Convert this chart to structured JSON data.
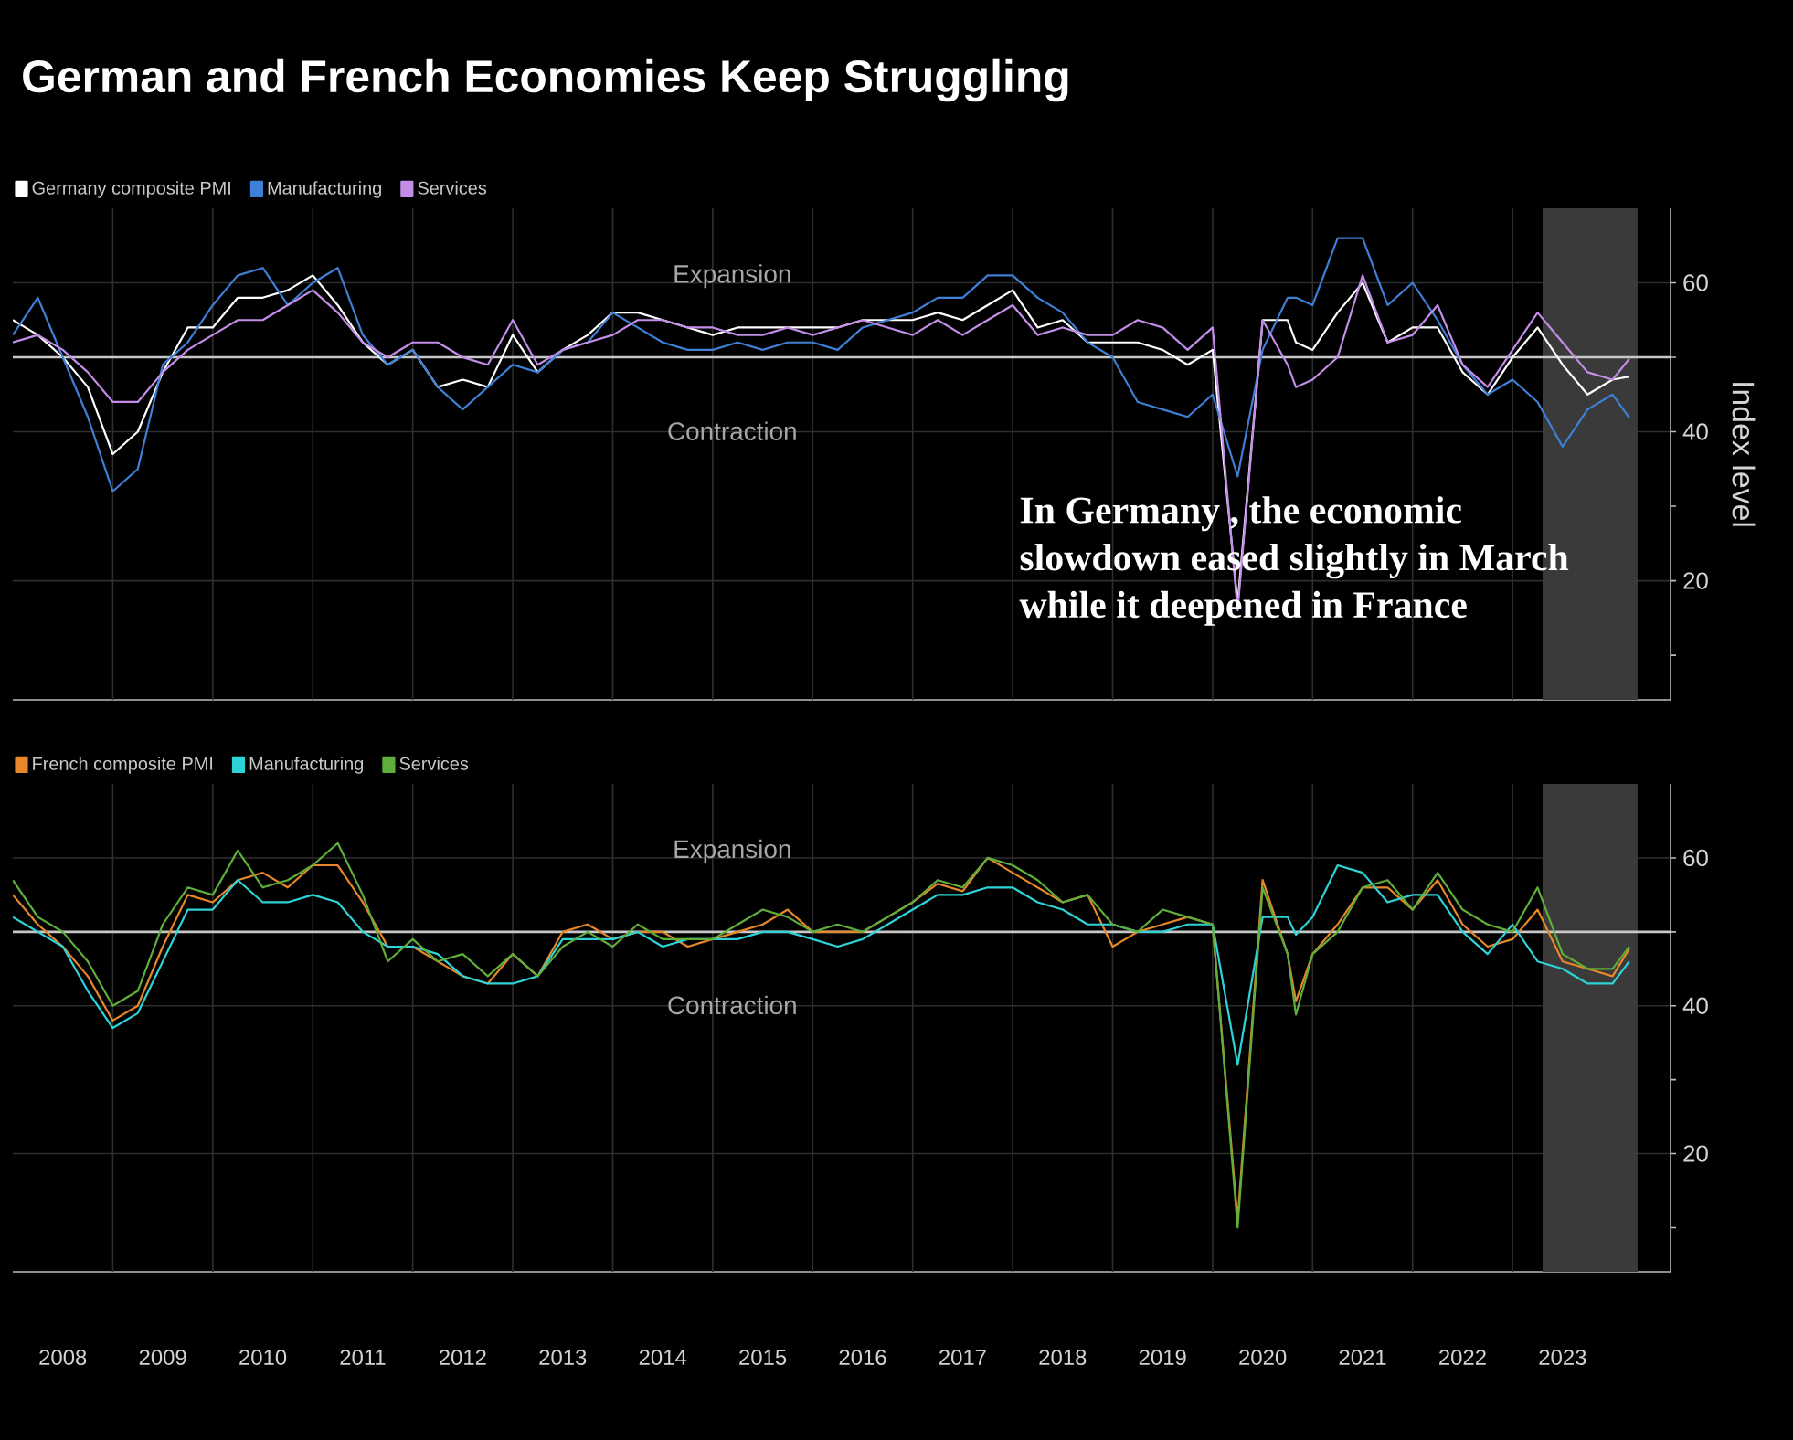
{
  "chart_data": [
    {
      "type": "line",
      "title": "German and French Economies Keep Struggling",
      "ylabel": "Index level",
      "legend": "top left",
      "tick_labels": "y",
      "grid": true,
      "x": [
        2008.0,
        2008.25,
        2008.5,
        2008.75,
        2009.0,
        2009.25,
        2009.5,
        2009.75,
        2010.0,
        2010.25,
        2010.5,
        2010.75,
        2011.0,
        2011.25,
        2011.5,
        2011.75,
        2012.0,
        2012.25,
        2012.5,
        2012.75,
        2013.0,
        2013.25,
        2013.5,
        2013.75,
        2014.0,
        2014.25,
        2014.5,
        2014.75,
        2015.0,
        2015.25,
        2015.5,
        2015.75,
        2016.0,
        2016.25,
        2016.5,
        2016.75,
        2017.0,
        2017.25,
        2017.5,
        2017.75,
        2018.0,
        2018.25,
        2018.5,
        2018.75,
        2019.0,
        2019.25,
        2019.5,
        2019.75,
        2020.0,
        2020.25,
        2020.5,
        2020.75,
        2020.833,
        2021.0,
        2021.25,
        2021.5,
        2021.75,
        2022.0,
        2022.25,
        2022.5,
        2022.75,
        2023.0,
        2023.25,
        2023.5,
        2023.75,
        2024.0,
        2024.167
      ],
      "xlim": [
        2008,
        2024.58
      ],
      "ylim": [
        4,
        70
      ],
      "xticks": [
        {
          "value": 2009,
          "label": null
        },
        {
          "value": 2010,
          "label": null
        },
        {
          "value": 2011,
          "label": null
        },
        {
          "value": 2012,
          "label": null
        },
        {
          "value": 2013,
          "label": null
        },
        {
          "value": 2014,
          "label": null
        },
        {
          "value": 2015,
          "label": null
        },
        {
          "value": 2016,
          "label": null
        },
        {
          "value": 2017,
          "label": null
        },
        {
          "value": 2018,
          "label": null
        },
        {
          "value": 2019,
          "label": null
        },
        {
          "value": 2020,
          "label": null
        },
        {
          "value": 2021,
          "label": null
        },
        {
          "value": 2022,
          "label": null
        },
        {
          "value": 2023,
          "label": null
        },
        {
          "value": 2024,
          "label": null
        }
      ],
      "yticks": [
        20,
        40,
        60,
        {
          "value": 10,
          "label": null
        },
        {
          "value": 30,
          "label": null
        },
        {
          "value": 50,
          "label": null
        }
      ],
      "ref_lines": [
        {
          "axis": "y",
          "value": 50,
          "color": "#c8c8c8"
        }
      ],
      "bands": [
        {
          "axis": "x",
          "from": 2023.3,
          "to": 2024.25,
          "color": "#3a3a3a"
        }
      ],
      "annotations": [
        "Expansion",
        "Contraction",
        "In Germany , the economic slowdown eased slightly in March while it deepened in France"
      ],
      "series": [
        {
          "name": "Germany composite PMI",
          "color": "#ffffff",
          "values": [
            55,
            53,
            50,
            46,
            37,
            40,
            48,
            54,
            54,
            58,
            58,
            59,
            61,
            57,
            52,
            49,
            51,
            46,
            47,
            46,
            53,
            48,
            51,
            53,
            56,
            56,
            55,
            54,
            53,
            54,
            54,
            54,
            54,
            54,
            55,
            55,
            55,
            56,
            55,
            57,
            59,
            54,
            55,
            52,
            52,
            52,
            51,
            49,
            51,
            17,
            55,
            55,
            52,
            51,
            56,
            60,
            52,
            54,
            54,
            48,
            45,
            50,
            54,
            49,
            45,
            47,
            47.4
          ]
        },
        {
          "name": "Manufacturing",
          "color": "#3f7fd6",
          "values": [
            53,
            58,
            50,
            42,
            32,
            35,
            49,
            52,
            57,
            61,
            62,
            57,
            60,
            62,
            53,
            49,
            51,
            46,
            43,
            46,
            49,
            48,
            51,
            52,
            56,
            54,
            52,
            51,
            51,
            52,
            51,
            52,
            52,
            51,
            54,
            55,
            56,
            58,
            58,
            61,
            61,
            58,
            56,
            52,
            50,
            44,
            43,
            42,
            45,
            34,
            51,
            58,
            58,
            57,
            66,
            66,
            57,
            60,
            55,
            49,
            45,
            47,
            44,
            38,
            43,
            45,
            41.9
          ]
        },
        {
          "name": "Services",
          "color": "#c38de8",
          "values": [
            52,
            53,
            51,
            48,
            44,
            44,
            48,
            51,
            53,
            55,
            55,
            57,
            59,
            56,
            52,
            50,
            52,
            52,
            50,
            49,
            55,
            49,
            51,
            52,
            53,
            55,
            55,
            54,
            54,
            53,
            53,
            54,
            53,
            54,
            55,
            54,
            53,
            55,
            53,
            55,
            57,
            53,
            54,
            53,
            53,
            55,
            54,
            51,
            54,
            16,
            55,
            49,
            46,
            47,
            50,
            61,
            52,
            53,
            57,
            49,
            46,
            51,
            56,
            52,
            48,
            47,
            49.8
          ]
        }
      ]
    },
    {
      "type": "line",
      "legend": "top left",
      "grid": true,
      "x": [
        2008.0,
        2008.25,
        2008.5,
        2008.75,
        2009.0,
        2009.25,
        2009.5,
        2009.75,
        2010.0,
        2010.25,
        2010.5,
        2010.75,
        2011.0,
        2011.25,
        2011.5,
        2011.75,
        2012.0,
        2012.25,
        2012.5,
        2012.75,
        2013.0,
        2013.25,
        2013.5,
        2013.75,
        2014.0,
        2014.25,
        2014.5,
        2014.75,
        2015.0,
        2015.25,
        2015.5,
        2015.75,
        2016.0,
        2016.25,
        2016.5,
        2016.75,
        2017.0,
        2017.25,
        2017.5,
        2017.75,
        2018.0,
        2018.25,
        2018.5,
        2018.75,
        2019.0,
        2019.25,
        2019.5,
        2019.75,
        2020.0,
        2020.25,
        2020.5,
        2020.75,
        2020.833,
        2021.0,
        2021.25,
        2021.5,
        2021.75,
        2022.0,
        2022.25,
        2022.5,
        2022.75,
        2023.0,
        2023.25,
        2023.5,
        2023.75,
        2024.0,
        2024.167
      ],
      "xlim": [
        2008,
        2024.58
      ],
      "ylim": [
        4,
        70
      ],
      "xticks": [
        {
          "value": 2008.5,
          "label": "2008"
        },
        {
          "value": 2009.5,
          "label": "2009"
        },
        {
          "value": 2010.5,
          "label": "2010"
        },
        {
          "value": 2011.5,
          "label": "2011"
        },
        {
          "value": 2012.5,
          "label": "2012"
        },
        {
          "value": 2013.5,
          "label": "2013"
        },
        {
          "value": 2014.5,
          "label": "2014"
        },
        {
          "value": 2015.5,
          "label": "2015"
        },
        {
          "value": 2016.5,
          "label": "2016"
        },
        {
          "value": 2017.5,
          "label": "2017"
        },
        {
          "value": 2018.5,
          "label": "2018"
        },
        {
          "value": 2019.5,
          "label": "2019"
        },
        {
          "value": 2020.5,
          "label": "2020"
        },
        {
          "value": 2021.5,
          "label": "2021"
        },
        {
          "value": 2022.5,
          "label": "2022"
        },
        {
          "value": 2023.5,
          "label": "2023"
        },
        {
          "value": 2009,
          "label": null
        },
        {
          "value": 2010,
          "label": null
        },
        {
          "value": 2011,
          "label": null
        },
        {
          "value": 2012,
          "label": null
        },
        {
          "value": 2013,
          "label": null
        },
        {
          "value": 2014,
          "label": null
        },
        {
          "value": 2015,
          "label": null
        },
        {
          "value": 2016,
          "label": null
        },
        {
          "value": 2017,
          "label": null
        },
        {
          "value": 2018,
          "label": null
        },
        {
          "value": 2019,
          "label": null
        },
        {
          "value": 2020,
          "label": null
        },
        {
          "value": 2021,
          "label": null
        },
        {
          "value": 2022,
          "label": null
        },
        {
          "value": 2023,
          "label": null
        },
        {
          "value": 2024,
          "label": null
        }
      ],
      "yticks": [
        20,
        40,
        60,
        {
          "value": 10,
          "label": null
        },
        {
          "value": 30,
          "label": null
        },
        {
          "value": 50,
          "label": null
        }
      ],
      "ref_lines": [
        {
          "axis": "y",
          "value": 50,
          "color": "#c8c8c8"
        }
      ],
      "bands": [
        {
          "axis": "x",
          "from": 2023.3,
          "to": 2024.25,
          "color": "#3a3a3a"
        }
      ],
      "annotations": [
        "Expansion",
        "Contraction"
      ],
      "series": [
        {
          "name": "French composite PMI",
          "color": "#e8862a",
          "values": [
            55,
            51,
            48,
            44,
            38,
            40,
            48,
            55,
            54,
            57,
            58,
            56,
            59,
            59,
            54,
            48,
            48,
            46,
            44,
            43,
            47,
            44,
            50,
            51,
            49,
            50,
            50,
            48,
            49,
            50,
            51,
            53,
            50,
            50,
            50,
            52,
            54,
            56.5,
            55.5,
            60,
            58,
            56,
            54,
            55,
            48,
            50,
            51,
            52,
            51,
            11,
            57,
            47,
            40.6,
            47,
            51,
            56,
            56,
            53,
            57,
            51,
            48,
            49,
            53,
            46,
            45,
            44,
            47.7
          ]
        },
        {
          "name": "Manufacturing",
          "color": "#2ed3d8",
          "values": [
            52,
            50,
            48,
            42,
            37,
            39,
            46,
            53,
            53,
            57,
            54,
            54,
            55,
            54,
            50,
            48,
            48,
            47,
            44,
            43,
            43,
            44,
            49,
            49,
            49,
            50,
            48,
            49,
            49,
            49,
            50,
            50,
            49,
            48,
            49,
            51,
            53,
            55,
            55,
            56,
            56,
            54,
            53,
            51,
            51,
            50,
            50,
            51,
            51,
            32,
            52,
            52,
            49.6,
            52,
            59,
            58,
            54,
            55,
            55,
            50,
            47,
            51,
            46,
            45,
            43,
            43,
            46
          ]
        },
        {
          "name": "Services",
          "color": "#5fae3a",
          "values": [
            57,
            52,
            50,
            46,
            40,
            42,
            51,
            56,
            55,
            61,
            56,
            57,
            59,
            62,
            55,
            46,
            49,
            46,
            47,
            44,
            47,
            44,
            48,
            50,
            48,
            51,
            49,
            49,
            49,
            51,
            53,
            52,
            50,
            51,
            50,
            52,
            54,
            57,
            56,
            60,
            59,
            57,
            54,
            55,
            51,
            50,
            53,
            52,
            51,
            10,
            56,
            47,
            38.8,
            47,
            50,
            56,
            57,
            53,
            58,
            53,
            51,
            50,
            56,
            47,
            45,
            45,
            48
          ]
        }
      ]
    }
  ]
}
